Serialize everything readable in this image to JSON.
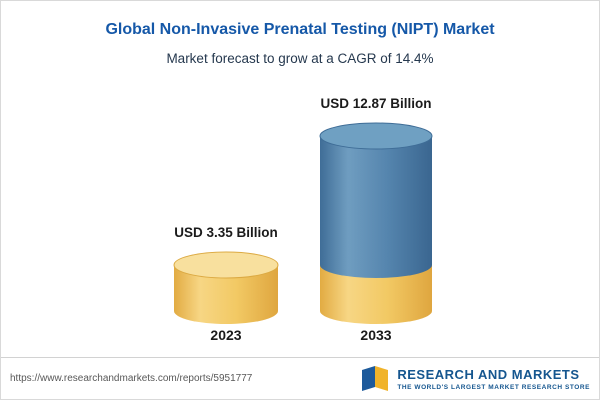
{
  "header": {
    "title": "Global Non-Invasive Prenatal Testing (NIPT) Market",
    "subtitle": "Market forecast to grow at a CAGR of 14.4%"
  },
  "chart_data": {
    "type": "bar",
    "variant": "3d-cylinder",
    "title": "Global Non-Invasive Prenatal Testing (NIPT) Market",
    "subtitle": "Market forecast to grow at a CAGR of 14.4%",
    "categories": [
      "2023",
      "2033"
    ],
    "values": [
      3.35,
      12.87
    ],
    "value_labels": [
      "USD 3.35 Billion",
      "USD 12.87 Billion"
    ],
    "unit": "USD Billion",
    "cagr_percent": 14.4,
    "axes": "none",
    "legend": "none",
    "colors": {
      "bar_2023": "#f2c964",
      "bar_2033": "#55<!---->85ae",
      "bar_2033_base_segment": "#f2c964",
      "title_accent": "#1558a8"
    }
  },
  "footer": {
    "url": "https://www.researchandmarkets.com/reports/5951777",
    "logo_text": "RESEARCH AND MARKETS",
    "logo_tagline": "THE WORLD'S LARGEST MARKET RESEARCH STORE"
  }
}
